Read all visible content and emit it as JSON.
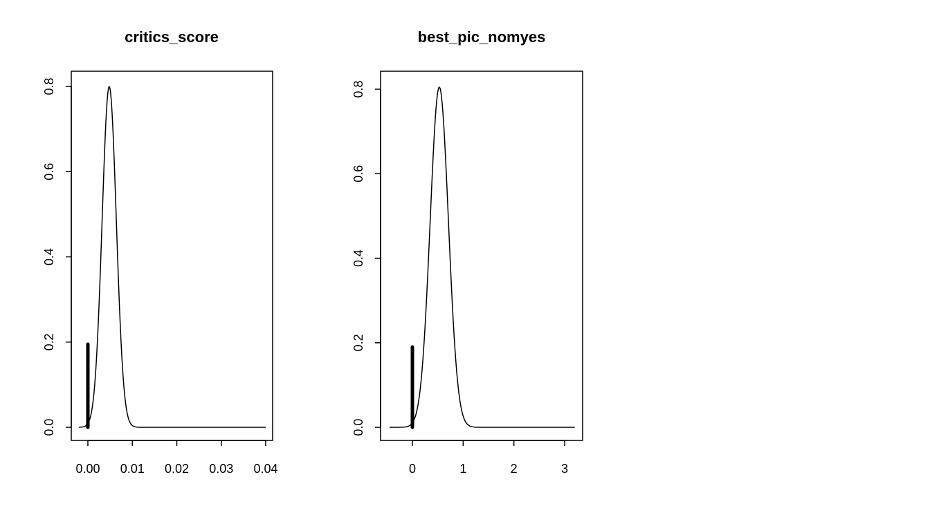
{
  "chart_data": [
    {
      "type": "line",
      "title": "critics_score",
      "xlim": [
        -0.0004,
        0.04
      ],
      "ylim": [
        0,
        0.8
      ],
      "x_ticks": [
        0.0,
        0.01,
        0.02,
        0.03,
        0.04
      ],
      "x_tick_labels": [
        "0.00",
        "0.01",
        "0.02",
        "0.03",
        "0.04"
      ],
      "y_ticks": [
        0.0,
        0.2,
        0.4,
        0.6,
        0.8
      ],
      "y_tick_labels": [
        "0.0",
        "0.2",
        "0.4",
        "0.6",
        "0.8"
      ],
      "density_curve": {
        "peak_x": 0.0048,
        "peak_y": 0.8,
        "sd": 0.0016,
        "x_range": [
          -0.002,
          0.04
        ],
        "scale_factor": 1.0,
        "points": [
          [
            -0.002,
            0.0
          ],
          [
            0.0,
            0.02
          ],
          [
            0.002,
            0.18
          ],
          [
            0.004,
            0.68
          ],
          [
            0.0048,
            0.8
          ],
          [
            0.006,
            0.6
          ],
          [
            0.008,
            0.11
          ],
          [
            0.01,
            0.005
          ],
          [
            0.02,
            0.0
          ],
          [
            0.04,
            0.0
          ]
        ]
      },
      "point_mass": {
        "x": 0.0,
        "height": 0.195
      }
    },
    {
      "type": "line",
      "title": "best_pic_nomyes",
      "xlim": [
        -0.45,
        3.2
      ],
      "ylim": [
        0,
        0.8
      ],
      "x_ticks": [
        0,
        1,
        2,
        3
      ],
      "x_tick_labels": [
        "0",
        "1",
        "2",
        "3"
      ],
      "y_ticks": [
        0.0,
        0.2,
        0.4,
        0.6,
        0.8
      ],
      "y_tick_labels": [
        "0.0",
        "0.2",
        "0.4",
        "0.6",
        "0.8"
      ],
      "density_curve": {
        "peak_x": 0.53,
        "peak_y": 0.805,
        "sd": 0.18,
        "x_range": [
          -0.45,
          3.2
        ],
        "points": [
          [
            -0.45,
            0.0
          ],
          [
            0.0,
            0.02
          ],
          [
            0.2,
            0.16
          ],
          [
            0.4,
            0.62
          ],
          [
            0.53,
            0.805
          ],
          [
            0.7,
            0.56
          ],
          [
            0.9,
            0.1
          ],
          [
            1.1,
            0.01
          ],
          [
            2.0,
            0.0
          ],
          [
            3.2,
            0.0
          ]
        ]
      },
      "point_mass": {
        "x": 0.0,
        "height": 0.19
      }
    }
  ]
}
